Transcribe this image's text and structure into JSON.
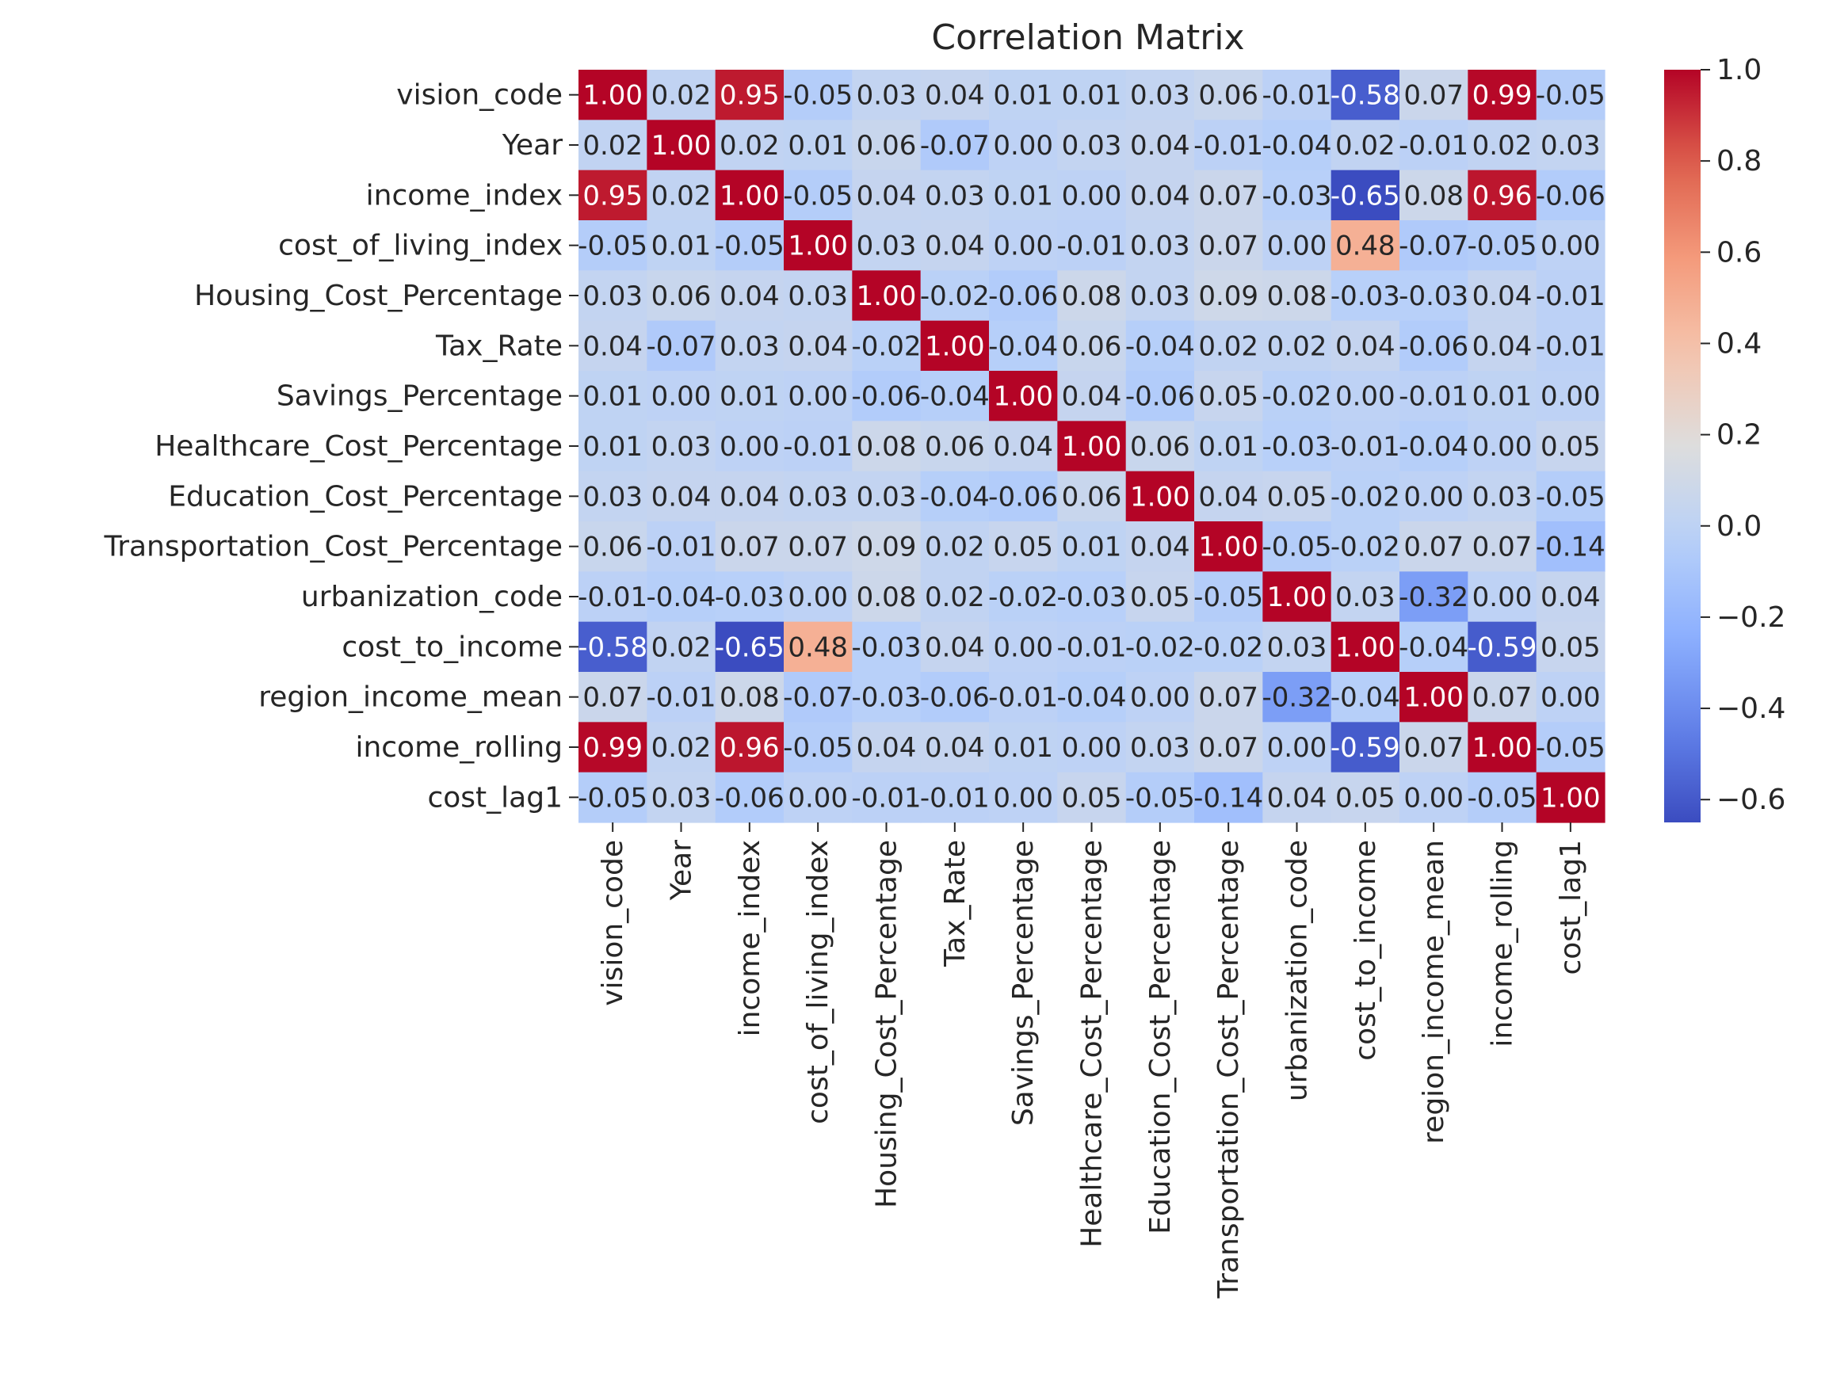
{
  "chart_data": {
    "type": "heatmap",
    "title": "Correlation Matrix",
    "xlabel": "",
    "ylabel": "",
    "labels": [
      "vision_code",
      "Year",
      "income_index",
      "cost_of_living_index",
      "Housing_Cost_Percentage",
      "Tax_Rate",
      "Savings_Percentage",
      "Healthcare_Cost_Percentage",
      "Education_Cost_Percentage",
      "Transportation_Cost_Percentage",
      "urbanization_code",
      "cost_to_income",
      "region_income_mean",
      "income_rolling",
      "cost_lag1"
    ],
    "values": [
      [
        1.0,
        0.02,
        0.95,
        -0.05,
        0.03,
        0.04,
        0.01,
        0.01,
        0.03,
        0.06,
        -0.01,
        -0.58,
        0.07,
        0.99,
        -0.05
      ],
      [
        0.02,
        1.0,
        0.02,
        0.01,
        0.06,
        -0.07,
        0.0,
        0.03,
        0.04,
        -0.01,
        -0.04,
        0.02,
        -0.01,
        0.02,
        0.03
      ],
      [
        0.95,
        0.02,
        1.0,
        -0.05,
        0.04,
        0.03,
        0.01,
        0.0,
        0.04,
        0.07,
        -0.03,
        -0.65,
        0.08,
        0.96,
        -0.06
      ],
      [
        -0.05,
        0.01,
        -0.05,
        1.0,
        0.03,
        0.04,
        0.0,
        -0.01,
        0.03,
        0.07,
        0.0,
        0.48,
        -0.07,
        -0.05,
        0.0
      ],
      [
        0.03,
        0.06,
        0.04,
        0.03,
        1.0,
        -0.02,
        -0.06,
        0.08,
        0.03,
        0.09,
        0.08,
        -0.03,
        -0.03,
        0.04,
        -0.01
      ],
      [
        0.04,
        -0.07,
        0.03,
        0.04,
        -0.02,
        1.0,
        -0.04,
        0.06,
        -0.04,
        0.02,
        0.02,
        0.04,
        -0.06,
        0.04,
        -0.01
      ],
      [
        0.01,
        0.0,
        0.01,
        0.0,
        -0.06,
        -0.04,
        1.0,
        0.04,
        -0.06,
        0.05,
        -0.02,
        -0.0,
        -0.01,
        0.01,
        -0.0
      ],
      [
        0.01,
        0.03,
        0.0,
        -0.01,
        0.08,
        0.06,
        0.04,
        1.0,
        0.06,
        0.01,
        -0.03,
        -0.01,
        -0.04,
        0.0,
        0.05
      ],
      [
        0.03,
        0.04,
        0.04,
        0.03,
        0.03,
        -0.04,
        -0.06,
        0.06,
        1.0,
        0.04,
        0.05,
        -0.02,
        0.0,
        0.03,
        -0.05
      ],
      [
        0.06,
        -0.01,
        0.07,
        0.07,
        0.09,
        0.02,
        0.05,
        0.01,
        0.04,
        1.0,
        -0.05,
        -0.02,
        0.07,
        0.07,
        -0.14
      ],
      [
        -0.01,
        -0.04,
        -0.03,
        0.0,
        0.08,
        0.02,
        -0.02,
        -0.03,
        0.05,
        -0.05,
        1.0,
        0.03,
        -0.32,
        0.0,
        0.04
      ],
      [
        -0.58,
        0.02,
        -0.65,
        0.48,
        -0.03,
        0.04,
        -0.0,
        -0.01,
        -0.02,
        -0.02,
        0.03,
        1.0,
        -0.04,
        -0.59,
        0.05
      ],
      [
        0.07,
        -0.01,
        0.08,
        -0.07,
        -0.03,
        -0.06,
        -0.01,
        -0.04,
        0.0,
        0.07,
        -0.32,
        -0.04,
        1.0,
        0.07,
        0.0
      ],
      [
        0.99,
        0.02,
        0.96,
        -0.05,
        0.04,
        0.04,
        0.01,
        0.0,
        0.03,
        0.07,
        0.0,
        -0.59,
        0.07,
        1.0,
        -0.05
      ],
      [
        -0.05,
        0.03,
        -0.06,
        0.0,
        -0.01,
        -0.01,
        -0.0,
        0.05,
        -0.05,
        -0.14,
        0.04,
        0.05,
        0.0,
        -0.05,
        1.0
      ]
    ],
    "colormap": "coolwarm",
    "colorbar": {
      "vmin": -0.65,
      "vmax": 1.0,
      "ticks": [
        1.0,
        0.8,
        0.6,
        0.4,
        0.2,
        0.0,
        -0.2,
        -0.4,
        -0.6
      ],
      "tick_labels": [
        "1.0",
        "0.8",
        "0.6",
        "0.4",
        "0.2",
        "0.0",
        "−0.2",
        "−0.4",
        "−0.6"
      ]
    },
    "annotation_format": "2 decimals",
    "grid": false,
    "legend": "colorbar-right"
  }
}
